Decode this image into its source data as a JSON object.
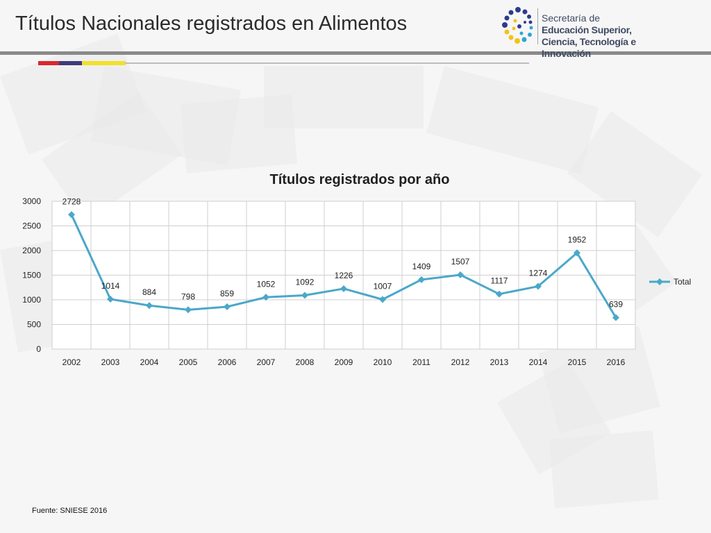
{
  "slide": {
    "title": "Títulos Nacionales registrados en Alimentos",
    "source": "Fuente: SNIESE 2016",
    "strip_colors": [
      "#d7292f",
      "#3f3a7a",
      "#f2e02a"
    ]
  },
  "logo": {
    "line1": "Secretaría de",
    "line2": "Educación Superior,",
    "line3": "Ciencia, Tecnología e Innovación",
    "icon": "senescyt-dots-logo",
    "colors": [
      "#2b3c8c",
      "#f2c318",
      "#2aa6d6"
    ]
  },
  "chart_data": {
    "type": "line",
    "title": "Títulos registrados por año",
    "categories": [
      "2002",
      "2003",
      "2004",
      "2005",
      "2006",
      "2007",
      "2008",
      "2009",
      "2010",
      "2011",
      "2012",
      "2013",
      "2014",
      "2015",
      "2016"
    ],
    "series": [
      {
        "name": "Total",
        "values": [
          2728,
          1014,
          884,
          798,
          859,
          1052,
          1092,
          1226,
          1007,
          1409,
          1507,
          1117,
          1274,
          1952,
          639
        ],
        "color": "#4aa8c9"
      }
    ],
    "ylim": [
      0,
      3000
    ],
    "yticks": [
      0,
      500,
      1000,
      1500,
      2000,
      2500,
      3000
    ],
    "grid": true,
    "legend": "right",
    "data_labels": true,
    "xlabel": "",
    "ylabel": ""
  }
}
